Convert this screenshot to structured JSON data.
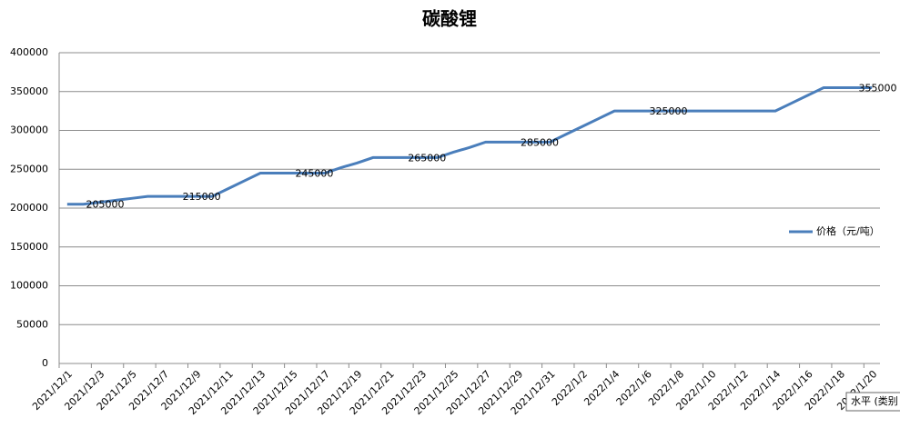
{
  "chart_data": {
    "type": "line",
    "title": "碳酸锂",
    "categories": [
      "2021/12/1",
      null,
      "2021/12/3",
      null,
      "2021/12/5",
      null,
      "2021/12/7",
      null,
      "2021/12/9",
      null,
      "2021/12/11",
      null,
      "2021/12/13",
      null,
      "2021/12/15",
      null,
      "2021/12/17",
      null,
      "2021/12/19",
      null,
      "2021/12/21",
      null,
      "2021/12/23",
      null,
      "2021/12/25",
      null,
      "2021/12/27",
      null,
      "2021/12/29",
      null,
      "2021/12/31",
      null,
      "2022/1/2",
      null,
      "2022/1/4",
      null,
      "2022/1/6",
      null,
      "2022/1/8",
      null,
      "2022/1/10",
      null,
      "2022/1/12",
      null,
      "2022/1/14",
      null,
      "2022/1/16",
      null,
      "2022/1/18",
      null,
      "2022/1/20"
    ],
    "series": [
      {
        "name": "价格（元/吨）",
        "color": "#4a7ebb",
        "values": [
          205000,
          205000,
          207500,
          210000,
          212500,
          215000,
          215000,
          215000,
          215000,
          215000,
          225000,
          235000,
          245000,
          245000,
          245000,
          245000,
          245000,
          252000,
          258000,
          265000,
          265000,
          265000,
          265000,
          265000,
          272000,
          278000,
          285000,
          285000,
          285000,
          285000,
          285000,
          295000,
          305000,
          315000,
          325000,
          325000,
          325000,
          325000,
          325000,
          325000,
          325000,
          325000,
          325000,
          325000,
          325000,
          335000,
          345000,
          355000,
          355000,
          355000,
          355000
        ],
        "value_labels": [
          null,
          "205000",
          null,
          null,
          null,
          null,
          null,
          "215000",
          null,
          null,
          null,
          null,
          null,
          null,
          "245000",
          null,
          null,
          null,
          null,
          null,
          null,
          "265000",
          null,
          null,
          null,
          null,
          null,
          null,
          "285000",
          null,
          null,
          null,
          null,
          null,
          null,
          null,
          "325000",
          null,
          null,
          null,
          null,
          null,
          null,
          null,
          null,
          null,
          null,
          null,
          null,
          "355000",
          null
        ]
      }
    ],
    "ylim": [
      0,
      400000
    ],
    "yticks": [
      0,
      50000,
      100000,
      150000,
      200000,
      250000,
      300000,
      350000,
      400000
    ],
    "grid": true,
    "legend": "right",
    "tooltip": "水平 (类别"
  }
}
